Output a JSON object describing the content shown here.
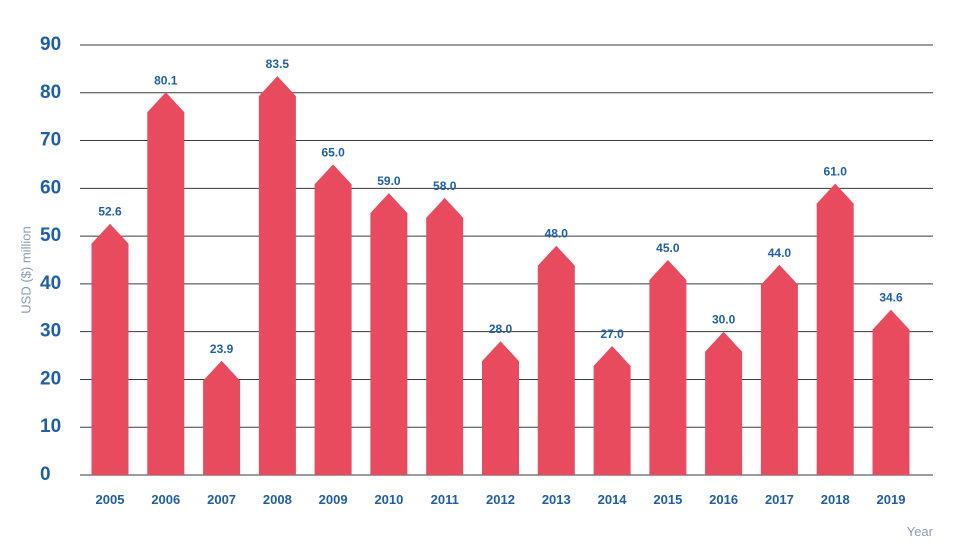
{
  "chart_data": {
    "type": "bar",
    "title": "",
    "xlabel": "Year",
    "ylabel": "USD ($) million",
    "ylim": [
      0,
      90
    ],
    "yticks": [
      0,
      10,
      20,
      30,
      40,
      50,
      60,
      70,
      80,
      90
    ],
    "grid": true,
    "legend": "none",
    "categories": [
      "2005",
      "2006",
      "2007",
      "2008",
      "2009",
      "2010",
      "2011",
      "2012",
      "2013",
      "2014",
      "2015",
      "2016",
      "2017",
      "2018",
      "2019"
    ],
    "values": [
      52.6,
      80.1,
      23.9,
      83.5,
      65.0,
      59.0,
      58.0,
      28.0,
      48.0,
      27.0,
      45.0,
      30.0,
      44.0,
      61.0,
      34.6
    ],
    "value_labels": [
      "52.6",
      "80.1",
      "23.9",
      "83.5",
      "65.0",
      "59.0",
      "58.0",
      "28.0",
      "48.0",
      "27.0",
      "45.0",
      "30.0",
      "44.0",
      "61.0",
      "34.6"
    ]
  },
  "colors": {
    "bar": "#e84b5e",
    "tick_text": "#1f5fa8",
    "axis_title": "#8a9bb0",
    "grid": "#3a3a3a"
  }
}
